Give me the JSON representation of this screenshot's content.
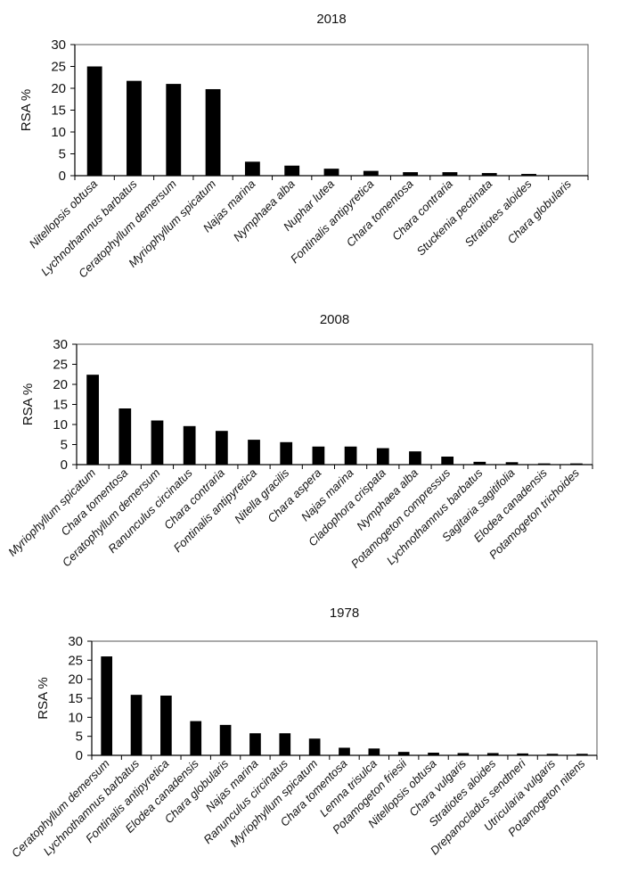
{
  "chart_data": [
    {
      "type": "bar",
      "title": "2018",
      "ylabel": "RSA %",
      "xlabel": "",
      "ylim": [
        0,
        30
      ],
      "yticks": [
        0,
        5,
        10,
        15,
        20,
        25,
        30
      ],
      "grid": false,
      "bar_color": "#000000",
      "categories": [
        "Nitellopsis obtusa",
        "Lychnothamnus barbatus",
        "Ceratophyllum demersum",
        "Myriophyllum spicatum",
        "Najas marina",
        "Nymphaea alba",
        "Nuphar lutea",
        "Fontinalis antipyretica",
        "Chara tomentosa",
        "Chara contraria",
        "Stuckenia pectinata",
        "Stratiotes aloides",
        "Chara globularis"
      ],
      "values": [
        25,
        21.7,
        21,
        19.8,
        3.2,
        2.3,
        1.6,
        1.1,
        0.8,
        0.8,
        0.6,
        0.4,
        0.1
      ]
    },
    {
      "type": "bar",
      "title": "2008",
      "ylabel": "RSA %",
      "xlabel": "",
      "ylim": [
        0,
        30
      ],
      "yticks": [
        0,
        5,
        10,
        15,
        20,
        25,
        30
      ],
      "grid": false,
      "bar_color": "#000000",
      "categories": [
        "Myriophyllum spicatum",
        "Chara tomentosa",
        "Ceratophyllum demersum",
        "Ranunculus circinatus",
        "Chara contraria",
        "Fontinalis antipyretica",
        "Nitella gracilis",
        "Chara aspera",
        "Najas marina",
        "Cladophora crispata",
        "Nymphaea alba",
        "Potamogeton compressus",
        "Lychnothamnus barbatus",
        "Sagitaria sagitifolia",
        "Elodea canadensis",
        "Potamogeton trichoides"
      ],
      "values": [
        22.4,
        14,
        11,
        9.6,
        8.4,
        6.2,
        5.6,
        4.5,
        4.5,
        4.1,
        3.3,
        2,
        0.7,
        0.6,
        0.3,
        0.3
      ]
    },
    {
      "type": "bar",
      "title": "1978",
      "ylabel": "RSA %",
      "xlabel": "",
      "ylim": [
        0,
        30
      ],
      "yticks": [
        0,
        5,
        10,
        15,
        20,
        25,
        30
      ],
      "grid": false,
      "bar_color": "#000000",
      "categories": [
        "Ceratophyllum demersum",
        "Lychnothamnus barbatus",
        "Fontinalis antipyretica",
        "Elodea canadensis",
        "Chara globularis",
        "Najas marina",
        "Ranunculus circinatus",
        "Myriophyllum spicatum",
        "Chara tomentosa",
        "Lemna trisulca",
        "Potamogeton friesii",
        "Nitellopsis obtusa",
        "Chara vulgaris",
        "Stratiotes aloides",
        "Drepanocladus sendtneri",
        "Utricularia vulgaris",
        "Potamogeton nitens"
      ],
      "values": [
        26,
        15.9,
        15.7,
        9,
        8,
        5.8,
        5.8,
        4.4,
        2,
        1.8,
        0.9,
        0.7,
        0.6,
        0.6,
        0.5,
        0.4,
        0.4
      ]
    }
  ]
}
